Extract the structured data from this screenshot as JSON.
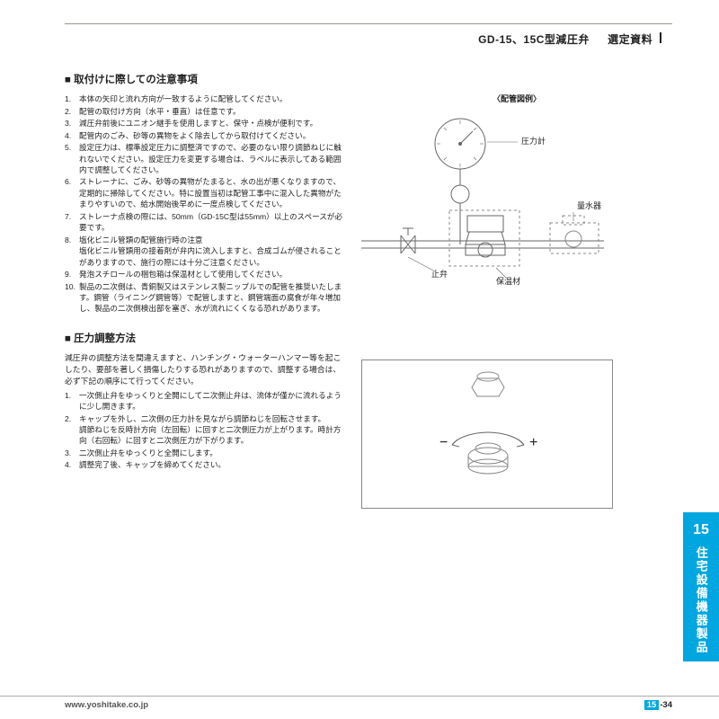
{
  "header": {
    "title_left": "GD-15、15C型減圧弁",
    "title_right": "選定資料"
  },
  "section1": {
    "heading": "■ 取付けに際しての注意事項",
    "fig_title": "〈配管図例〉",
    "labels": {
      "pressure_gauge": "圧力計",
      "flow_meter": "量水器",
      "stop_valve": "止弁",
      "insulation": "保温材"
    },
    "items": [
      "本体の矢印と流れ方向が一致するように配管してください。",
      "配管の取付け方向（水平・垂直）は任意です。",
      "減圧弁前後にユニオン継手を使用しますと、保守・点検が便利です。",
      "配管内のごみ、砂等の異物をよく除去してから取付けてください。",
      "設定圧力は、標準設定圧力に調整済ですので、必要のない限り調節ねじに触れないでください。設定圧力を変更する場合は、ラベルに表示してある範囲内で調整してください。",
      "ストレーナに、ごみ、砂等の異物がたまると、水の出が悪くなりますので、定期的に掃除してください。特に設置当初は配管工事中に混入した異物がたまりやすいので、給水開始後早めに一度点検してください。",
      "ストレーナ点検の際には、50mm（GD-15C型は55mm）以上のスペースが必要です。",
      "塩化ビニル管類の配管施行時の注意\n塩化ビニル管類用の接着剤が弁内に流入しますと、合成ゴムが侵されることがありますので、施行の際には十分ご注意ください。",
      "発泡スチロールの梱包箱は保温材として使用してください。",
      "製品の二次側は、青銅製又はステンレス製ニップルでの配管を推奨いたします。鋼管（ライニング鋼管等）で配管しますと、鋼管端面の腐食が年々増加し、製品の二次側検出部を塞ぎ、水が流れにくくなる恐れがあります。"
    ]
  },
  "section2": {
    "heading": "■ 圧力調整方法",
    "intro": "減圧弁の調整方法を間違えますと、ハンチング・ウォーターハンマー等を起こしたり、要部を著しく損傷したりする恐れがありますので、調整する場合は、必ず下記の順序にて行ってください。",
    "items": [
      "一次側止弁をゆっくりと全開にして二次側止弁は、流体が僅かに流れるように少し開きます。",
      "キャップを外し、二次側の圧力計を見ながら調節ねじを回転させます。\n調節ねじを反時計方向（左回転）に回すと二次側圧力が上がります。時計方向（右回転）に回すと二次側圧力が下がります。",
      "二次側止弁をゆっくりと全開にします。",
      "調整完了後、キャップを締めてください。"
    ]
  },
  "sidebar": {
    "number": "15",
    "label": "住宅設備機器製品"
  },
  "footer": {
    "url": "www.yoshitake.co.jp",
    "section": "15",
    "page": "-34"
  },
  "style": {
    "accent_color": "#00a6e0",
    "line_color": "#777777",
    "dash_color": "#888888",
    "text_color": "#222222",
    "page_bg": "#ffffff"
  }
}
